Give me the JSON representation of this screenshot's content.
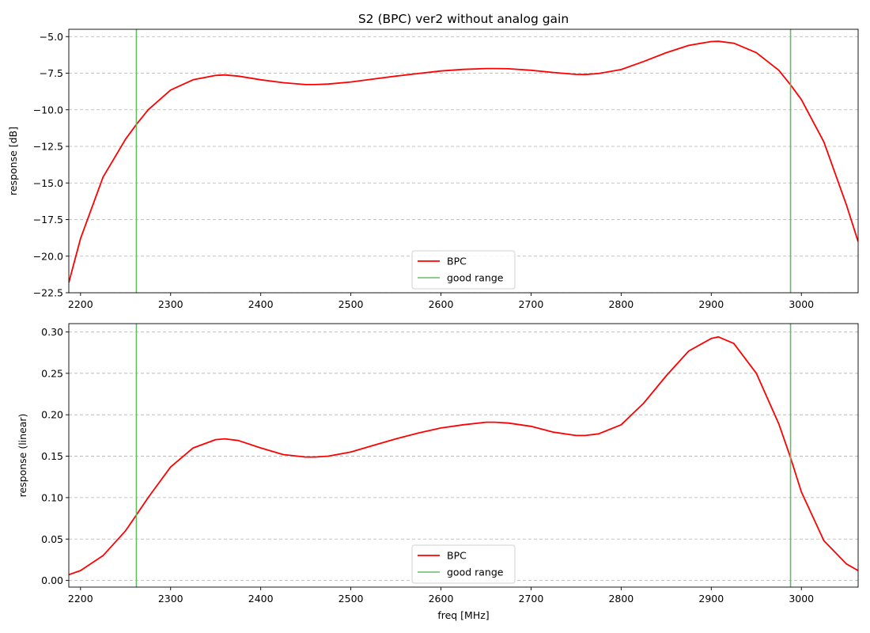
{
  "chart_data": [
    {
      "type": "line",
      "title": "S2 (BPC)   ver2   without analog gain",
      "xlabel": "",
      "ylabel": "response [dB]",
      "xlim": [
        2187,
        3063
      ],
      "ylim": [
        -22.5,
        -4.5
      ],
      "xticks": [
        "2200",
        "2300",
        "2400",
        "2500",
        "2600",
        "2700",
        "2800",
        "2900",
        "3000"
      ],
      "yticks": [
        "-22.5",
        "-20.0",
        "-17.5",
        "-15.0",
        "-12.5",
        "-10.0",
        "-7.5",
        "-5.0"
      ],
      "grid": "horizontal dashed",
      "legend": {
        "placement": "lower center",
        "entries": [
          "BPC",
          "good range"
        ]
      },
      "series": [
        {
          "name": "BPC",
          "color": "#ff0000",
          "x": [
            2187,
            2200,
            2225,
            2250,
            2262,
            2275,
            2300,
            2325,
            2350,
            2360,
            2375,
            2400,
            2425,
            2450,
            2460,
            2475,
            2500,
            2525,
            2550,
            2575,
            2600,
            2625,
            2650,
            2660,
            2675,
            2700,
            2725,
            2750,
            2760,
            2775,
            2800,
            2825,
            2850,
            2875,
            2900,
            2908,
            2925,
            2950,
            2975,
            2988,
            3000,
            3025,
            3050,
            3063
          ],
          "y": [
            -21.8,
            -18.8,
            -14.6,
            -12.0,
            -11.0,
            -10.0,
            -8.65,
            -7.95,
            -7.65,
            -7.62,
            -7.7,
            -7.95,
            -8.15,
            -8.28,
            -8.28,
            -8.24,
            -8.1,
            -7.9,
            -7.7,
            -7.52,
            -7.35,
            -7.24,
            -7.18,
            -7.18,
            -7.2,
            -7.3,
            -7.45,
            -7.58,
            -7.59,
            -7.52,
            -7.25,
            -6.7,
            -6.1,
            -5.6,
            -5.34,
            -5.32,
            -5.45,
            -6.1,
            -7.3,
            -8.3,
            -9.3,
            -12.2,
            -16.5,
            -19.0
          ]
        },
        {
          "name": "good range",
          "color": "#66bb66",
          "type": "vertical lines",
          "x": [
            2262,
            2988
          ]
        }
      ]
    },
    {
      "type": "line",
      "title": "",
      "xlabel": "freq [MHz]",
      "ylabel": "response (linear)",
      "xlim": [
        2187,
        3063
      ],
      "ylim": [
        -0.008,
        0.31
      ],
      "xticks": [
        "2200",
        "2300",
        "2400",
        "2500",
        "2600",
        "2700",
        "2800",
        "2900",
        "3000"
      ],
      "yticks": [
        "0.00",
        "0.05",
        "0.10",
        "0.15",
        "0.20",
        "0.25",
        "0.30"
      ],
      "grid": "horizontal dashed",
      "legend": {
        "placement": "lower center",
        "entries": [
          "BPC",
          "good range"
        ]
      },
      "series": [
        {
          "name": "BPC",
          "color": "#ff0000",
          "x": [
            2187,
            2200,
            2225,
            2250,
            2262,
            2275,
            2300,
            2325,
            2350,
            2360,
            2375,
            2400,
            2425,
            2450,
            2460,
            2475,
            2500,
            2525,
            2550,
            2575,
            2600,
            2625,
            2650,
            2660,
            2675,
            2700,
            2725,
            2750,
            2760,
            2775,
            2800,
            2825,
            2850,
            2875,
            2900,
            2908,
            2925,
            2950,
            2975,
            2988,
            3000,
            3025,
            3050,
            3063
          ],
          "y": [
            0.007,
            0.012,
            0.03,
            0.06,
            0.079,
            0.1,
            0.137,
            0.16,
            0.17,
            0.171,
            0.169,
            0.16,
            0.152,
            0.149,
            0.149,
            0.15,
            0.155,
            0.163,
            0.171,
            0.178,
            0.184,
            0.188,
            0.191,
            0.191,
            0.19,
            0.186,
            0.179,
            0.175,
            0.175,
            0.177,
            0.188,
            0.214,
            0.247,
            0.277,
            0.292,
            0.294,
            0.286,
            0.25,
            0.189,
            0.148,
            0.107,
            0.048,
            0.02,
            0.012
          ]
        },
        {
          "name": "good range",
          "color": "#66bb66",
          "type": "vertical lines",
          "x": [
            2262,
            2988
          ]
        }
      ]
    }
  ]
}
